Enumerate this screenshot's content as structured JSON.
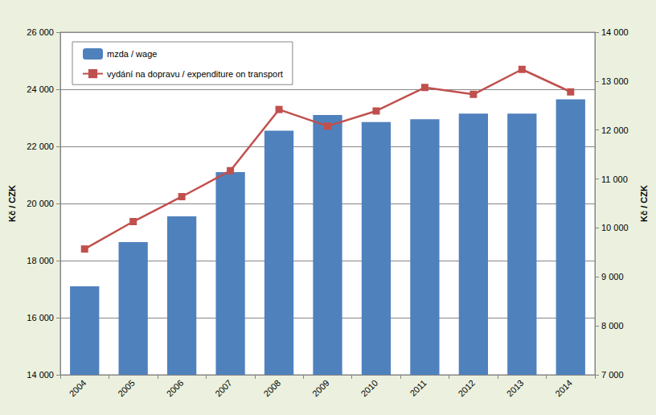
{
  "chart_data": {
    "type": "bar",
    "categories": [
      "2004",
      "2005",
      "2006",
      "2007",
      "2008",
      "2009",
      "2010",
      "2011",
      "2012",
      "2013",
      "2014"
    ],
    "series": [
      {
        "name": "mzda / wage",
        "type": "bar",
        "color": "#4f81bd",
        "values": [
          17100,
          18650,
          19550,
          21100,
          22550,
          23100,
          22850,
          22950,
          23150,
          23150,
          23650
        ]
      },
      {
        "name": "vydání na dopravu / expenditure on transport",
        "type": "line",
        "axis": "y2",
        "color": "#c0504d",
        "marker": "square",
        "values": [
          9570,
          10130,
          10640,
          11170,
          12420,
          12080,
          12390,
          12870,
          12730,
          13240,
          12780
        ]
      }
    ],
    "y_label": "Kč / CZK",
    "y2_label": "Kč / CZK",
    "ylim": [
      14000,
      26000
    ],
    "yticks": [
      {
        "value": 14000,
        "label": "14 000"
      },
      {
        "value": 16000,
        "label": "16 000"
      },
      {
        "value": 18000,
        "label": "18 000"
      },
      {
        "value": 20000,
        "label": "20 000"
      },
      {
        "value": 22000,
        "label": "22 000"
      },
      {
        "value": 24000,
        "label": "24 000"
      },
      {
        "value": 26000,
        "label": "26 000"
      }
    ],
    "y2lim": [
      7000,
      14000
    ],
    "y2ticks": [
      {
        "value": 7000,
        "label": "7 000"
      },
      {
        "value": 8000,
        "label": "8 000"
      },
      {
        "value": 9000,
        "label": "9 000"
      },
      {
        "value": 10000,
        "label": "10 000"
      },
      {
        "value": 11000,
        "label": "11 000"
      },
      {
        "value": 12000,
        "label": "12 000"
      },
      {
        "value": 13000,
        "label": "13 000"
      },
      {
        "value": 14000,
        "label": "14 000"
      }
    ],
    "grid": true,
    "legend": "upper left"
  }
}
